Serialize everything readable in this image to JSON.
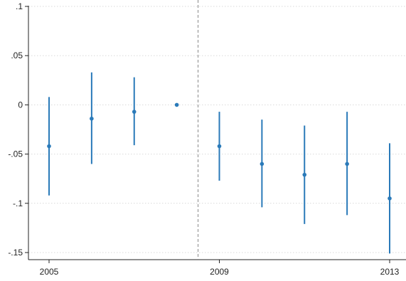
{
  "chart_data": {
    "type": "scatter",
    "title": "",
    "xlabel": "",
    "ylabel": "",
    "xlim": [
      2005,
      2013
    ],
    "ylim": [
      -0.15,
      0.1
    ],
    "x_ticks": [
      2005,
      2009,
      2013
    ],
    "x_tick_labels": [
      "2005",
      "2009",
      "2013"
    ],
    "y_ticks": [
      -0.15,
      -0.1,
      -0.05,
      0,
      0.05,
      0.1
    ],
    "y_tick_labels": [
      "-.15",
      "-.1",
      "-.05",
      "0",
      ".05",
      ".1"
    ],
    "grid": true,
    "reference_line": {
      "x": 2008.5,
      "style": "dashed"
    },
    "series": [
      {
        "color": "#2a7ab9",
        "points": [
          {
            "x": 2005,
            "y": -0.042,
            "lower": -0.092,
            "upper": 0.008
          },
          {
            "x": 2006,
            "y": -0.014,
            "lower": -0.06,
            "upper": 0.033
          },
          {
            "x": 2007,
            "y": -0.007,
            "lower": -0.041,
            "upper": 0.028
          },
          {
            "x": 2008,
            "y": 0.0,
            "lower": 0.0,
            "upper": 0.0
          },
          {
            "x": 2009,
            "y": -0.042,
            "lower": -0.077,
            "upper": -0.007
          },
          {
            "x": 2010,
            "y": -0.06,
            "lower": -0.104,
            "upper": -0.015
          },
          {
            "x": 2011,
            "y": -0.071,
            "lower": -0.121,
            "upper": -0.021
          },
          {
            "x": 2012,
            "y": -0.06,
            "lower": -0.112,
            "upper": -0.007
          },
          {
            "x": 2013,
            "y": -0.095,
            "lower": -0.151,
            "upper": -0.039
          }
        ]
      }
    ]
  }
}
